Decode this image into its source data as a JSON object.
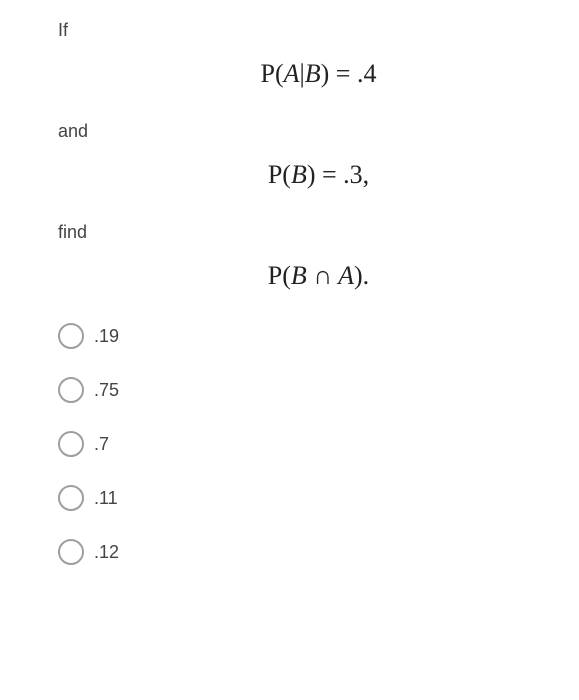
{
  "question": {
    "prompt1": "If",
    "equation1_html": "<span class='upright'>P(</span>A<span class='upright'>|</span>B<span class='upright'>) = .4</span>",
    "prompt2": "and",
    "equation2_html": "<span class='upright'>P(</span>B<span class='upright'>) = .3,</span>",
    "prompt3": "find",
    "equation3_html": "<span class='upright'>P(</span>B <span class='upright'>&cap;</span> A<span class='upright'>).</span>"
  },
  "options": [
    {
      "label": ".19"
    },
    {
      "label": ".75"
    },
    {
      "label": ".7"
    },
    {
      "label": ".11"
    },
    {
      "label": ".12"
    }
  ],
  "colors": {
    "background": "#ffffff",
    "text": "#444444",
    "equation": "#222222",
    "radio_border": "#9e9e9e"
  }
}
